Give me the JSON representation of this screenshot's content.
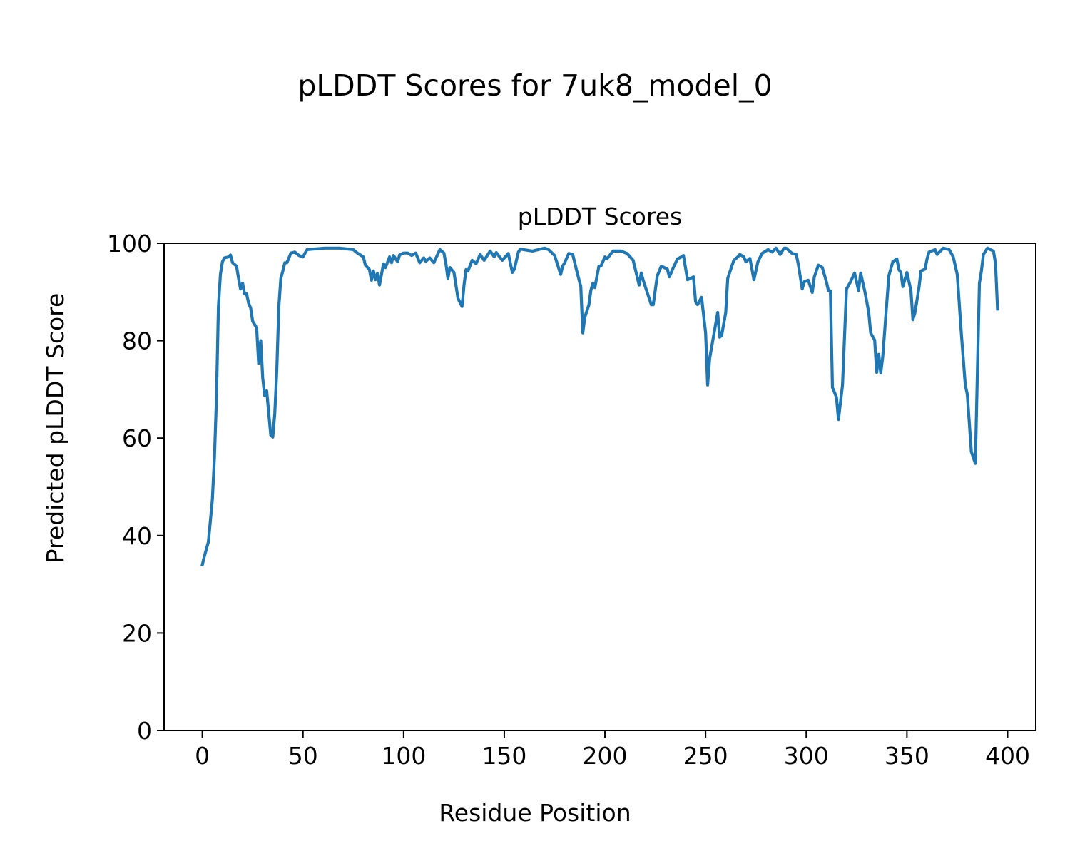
{
  "figure_title": "pLDDT Scores for 7uk8_model_0",
  "chart_data": {
    "type": "line",
    "title": "pLDDT Scores",
    "xlabel": "Residue Position",
    "ylabel": "Predicted pLDDT Score",
    "xlim": [
      -19,
      414
    ],
    "ylim": [
      0,
      100
    ],
    "xticks": [
      0,
      50,
      100,
      150,
      200,
      250,
      300,
      350,
      400
    ],
    "yticks": [
      0,
      20,
      40,
      60,
      80,
      100
    ],
    "grid": false,
    "line_color": "#1f77b4",
    "points": [
      [
        0,
        34
      ],
      [
        1,
        35.7
      ],
      [
        3,
        38.7
      ],
      [
        4,
        43
      ],
      [
        5,
        47.4
      ],
      [
        6,
        56
      ],
      [
        7,
        68
      ],
      [
        8,
        87
      ],
      [
        9,
        93.6
      ],
      [
        10,
        96.2
      ],
      [
        11,
        97
      ],
      [
        13,
        97.2
      ],
      [
        14,
        97.6
      ],
      [
        15,
        96
      ],
      [
        17,
        95.3
      ],
      [
        18,
        92.8
      ],
      [
        19,
        90.6
      ],
      [
        20,
        91.8
      ],
      [
        21,
        89.6
      ],
      [
        22,
        89.6
      ],
      [
        23,
        87.7
      ],
      [
        24,
        86.7
      ],
      [
        25,
        84
      ],
      [
        26,
        83.3
      ],
      [
        27,
        82.6
      ],
      [
        28,
        75.3
      ],
      [
        29,
        80
      ],
      [
        30,
        72.3
      ],
      [
        31,
        68.7
      ],
      [
        32,
        69.7
      ],
      [
        33,
        65
      ],
      [
        34,
        60.6
      ],
      [
        35,
        60.2
      ],
      [
        36,
        65
      ],
      [
        37,
        73.8
      ],
      [
        38,
        87
      ],
      [
        39,
        92.8
      ],
      [
        40,
        94.3
      ],
      [
        41,
        96
      ],
      [
        42,
        96
      ],
      [
        44,
        98
      ],
      [
        46,
        98.2
      ],
      [
        48,
        97.5
      ],
      [
        50,
        97.2
      ],
      [
        52,
        98.7
      ],
      [
        55,
        98.8
      ],
      [
        61,
        99
      ],
      [
        68,
        99
      ],
      [
        75,
        98.7
      ],
      [
        77,
        98
      ],
      [
        80,
        97.2
      ],
      [
        81,
        95.5
      ],
      [
        83,
        94.6
      ],
      [
        84,
        92.4
      ],
      [
        85,
        94.3
      ],
      [
        86,
        92.5
      ],
      [
        87,
        93.8
      ],
      [
        88,
        91.4
      ],
      [
        90,
        95.8
      ],
      [
        91,
        95
      ],
      [
        93,
        97.2
      ],
      [
        94,
        96
      ],
      [
        95,
        97.5
      ],
      [
        97,
        96.2
      ],
      [
        98,
        97.6
      ],
      [
        100,
        98
      ],
      [
        102,
        98
      ],
      [
        104,
        97.5
      ],
      [
        106,
        98
      ],
      [
        108,
        96
      ],
      [
        110,
        97
      ],
      [
        111,
        96.3
      ],
      [
        113,
        97
      ],
      [
        115,
        96
      ],
      [
        118,
        98.7
      ],
      [
        120,
        98
      ],
      [
        121,
        95.8
      ],
      [
        122,
        92.8
      ],
      [
        123,
        95
      ],
      [
        125,
        94
      ],
      [
        127,
        88.7
      ],
      [
        129,
        87
      ],
      [
        130,
        91.4
      ],
      [
        131,
        94.6
      ],
      [
        132,
        94.3
      ],
      [
        134,
        96.5
      ],
      [
        136,
        95.8
      ],
      [
        138,
        97.7
      ],
      [
        140,
        96.5
      ],
      [
        143,
        98.4
      ],
      [
        145,
        97.2
      ],
      [
        146,
        98.1
      ],
      [
        149,
        96.5
      ],
      [
        152,
        97.9
      ],
      [
        154,
        94
      ],
      [
        155,
        94.7
      ],
      [
        157,
        98.2
      ],
      [
        158,
        98.8
      ],
      [
        164,
        98.4
      ],
      [
        170,
        99
      ],
      [
        172,
        98.7
      ],
      [
        175,
        97.5
      ],
      [
        178,
        93.6
      ],
      [
        179,
        95.3
      ],
      [
        180,
        96
      ],
      [
        182,
        97.9
      ],
      [
        184,
        97.7
      ],
      [
        186,
        94.3
      ],
      [
        188,
        91.1
      ],
      [
        189,
        81.6
      ],
      [
        190,
        84.8
      ],
      [
        192,
        87.3
      ],
      [
        193,
        90.3
      ],
      [
        194,
        91.8
      ],
      [
        195,
        90.9
      ],
      [
        197,
        95.3
      ],
      [
        198,
        95.3
      ],
      [
        200,
        97.2
      ],
      [
        201,
        96.8
      ],
      [
        204,
        98.4
      ],
      [
        208,
        98.4
      ],
      [
        211,
        97.9
      ],
      [
        214,
        96.5
      ],
      [
        217,
        91.4
      ],
      [
        218,
        93.9
      ],
      [
        219,
        92.4
      ],
      [
        221,
        89.9
      ],
      [
        223,
        87.4
      ],
      [
        224,
        87.4
      ],
      [
        226,
        93.3
      ],
      [
        228,
        95.3
      ],
      [
        231,
        94.7
      ],
      [
        232,
        93.1
      ],
      [
        234,
        95
      ],
      [
        236,
        96.8
      ],
      [
        238,
        97.2
      ],
      [
        239,
        97.5
      ],
      [
        241,
        92.5
      ],
      [
        244,
        93.1
      ],
      [
        245,
        88
      ],
      [
        246,
        87.4
      ],
      [
        248,
        88.9
      ],
      [
        250,
        81.6
      ],
      [
        251,
        70.9
      ],
      [
        252,
        76.3
      ],
      [
        256,
        85.8
      ],
      [
        257,
        80.7
      ],
      [
        258,
        81.1
      ],
      [
        260,
        85.8
      ],
      [
        261,
        92.8
      ],
      [
        264,
        96.5
      ],
      [
        266,
        97.2
      ],
      [
        267,
        97.7
      ],
      [
        269,
        97.2
      ],
      [
        270,
        96.2
      ],
      [
        272,
        96.9
      ],
      [
        274,
        92.5
      ],
      [
        276,
        96.2
      ],
      [
        278,
        97.9
      ],
      [
        281,
        98.7
      ],
      [
        283,
        98.2
      ],
      [
        285,
        99
      ],
      [
        287,
        97.7
      ],
      [
        289,
        99
      ],
      [
        290,
        99
      ],
      [
        293,
        97.9
      ],
      [
        295,
        97.7
      ],
      [
        296,
        95.8
      ],
      [
        298,
        90.6
      ],
      [
        299,
        92.1
      ],
      [
        301,
        92.4
      ],
      [
        303,
        89.9
      ],
      [
        304,
        93.1
      ],
      [
        306,
        95.5
      ],
      [
        308,
        95
      ],
      [
        310,
        92.1
      ],
      [
        311,
        90.3
      ],
      [
        312,
        90.2
      ],
      [
        313,
        70.4
      ],
      [
        315,
        68.4
      ],
      [
        316,
        63.8
      ],
      [
        318,
        70.9
      ],
      [
        320,
        90.6
      ],
      [
        322,
        92.1
      ],
      [
        324,
        93.9
      ],
      [
        326,
        90.3
      ],
      [
        327,
        93.9
      ],
      [
        329,
        90.3
      ],
      [
        331,
        85.9
      ],
      [
        332,
        81.6
      ],
      [
        334,
        80.1
      ],
      [
        335,
        73.5
      ],
      [
        336,
        77.2
      ],
      [
        337,
        73.4
      ],
      [
        338,
        76.7
      ],
      [
        341,
        93.3
      ],
      [
        343,
        96.2
      ],
      [
        345,
        96.8
      ],
      [
        346,
        94.6
      ],
      [
        347,
        94
      ],
      [
        348,
        91.1
      ],
      [
        350,
        94
      ],
      [
        352,
        90.3
      ],
      [
        353,
        84.3
      ],
      [
        354,
        85.8
      ],
      [
        356,
        90.9
      ],
      [
        357,
        94.3
      ],
      [
        359,
        94.7
      ],
      [
        360,
        96.8
      ],
      [
        361,
        98.2
      ],
      [
        364,
        98.7
      ],
      [
        365,
        97.7
      ],
      [
        368,
        99
      ],
      [
        371,
        98.7
      ],
      [
        373,
        97.2
      ],
      [
        375,
        93.6
      ],
      [
        377,
        81.6
      ],
      [
        379,
        70.9
      ],
      [
        380,
        69
      ],
      [
        382,
        57.2
      ],
      [
        384,
        54.8
      ],
      [
        386,
        91.8
      ],
      [
        387,
        94.3
      ],
      [
        388,
        97.7
      ],
      [
        390,
        99
      ],
      [
        392,
        98.6
      ],
      [
        393,
        98.4
      ],
      [
        394,
        95.8
      ],
      [
        395,
        86.5
      ]
    ]
  }
}
